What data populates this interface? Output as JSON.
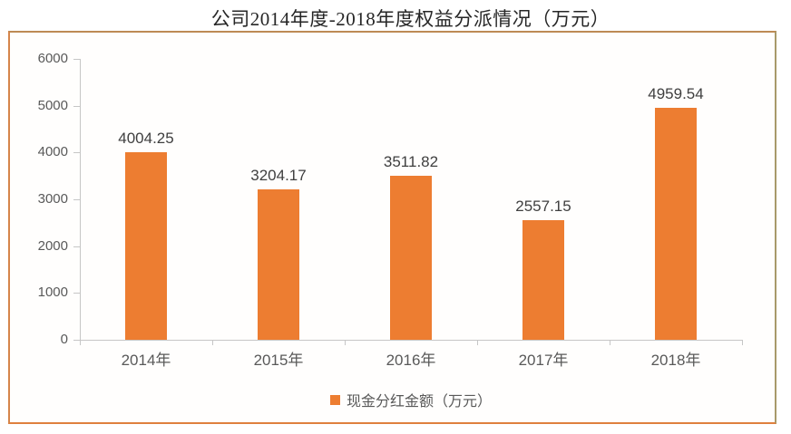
{
  "chart_data": {
    "type": "bar",
    "title": "公司2014年度-2018年度权益分派情况（万元）",
    "categories": [
      "2014年",
      "2015年",
      "2016年",
      "2017年",
      "2018年"
    ],
    "series": [
      {
        "name": "现金分红金额（万元）",
        "values": [
          4004.25,
          3204.17,
          3511.82,
          2557.15,
          4959.54
        ]
      }
    ],
    "data_labels": [
      "4004.25",
      "3204.17",
      "3511.82",
      "2557.15",
      "4959.54"
    ],
    "xlabel": "",
    "ylabel": "",
    "ylim": [
      0,
      6000
    ],
    "yticks": [
      0,
      1000,
      2000,
      3000,
      4000,
      5000,
      6000
    ],
    "grid": false,
    "legend": {
      "position": "bottom",
      "label": "现金分红金额（万元）",
      "swatch_color": "#ED7D31"
    },
    "colors": {
      "bar": "#ED7D31",
      "axis_line": "#C6C6C6",
      "tick_label": "#595959",
      "data_label": "#3F3F3F",
      "title": "#262626"
    }
  }
}
